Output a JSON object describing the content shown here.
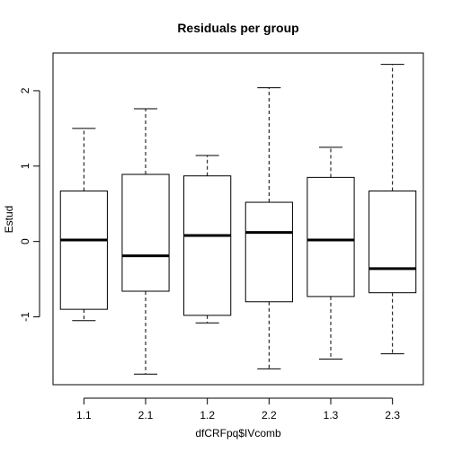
{
  "chart_data": {
    "type": "boxplot",
    "title": "Residuals per group",
    "xlabel": "dfCRFpq$IVcomb",
    "ylabel": "Estud",
    "categories": [
      "1.1",
      "2.1",
      "1.2",
      "2.2",
      "1.3",
      "2.3"
    ],
    "boxes": [
      {
        "category": "1.1",
        "whisker_low": -1.05,
        "q1": -0.9,
        "median": 0.02,
        "q3": 0.67,
        "whisker_high": 1.5
      },
      {
        "category": "2.1",
        "whisker_low": -1.76,
        "q1": -0.66,
        "median": -0.19,
        "q3": 0.89,
        "whisker_high": 1.76
      },
      {
        "category": "1.2",
        "whisker_low": -1.08,
        "q1": -0.98,
        "median": 0.08,
        "q3": 0.87,
        "whisker_high": 1.14
      },
      {
        "category": "2.2",
        "whisker_low": -1.69,
        "q1": -0.8,
        "median": 0.12,
        "q3": 0.52,
        "whisker_high": 2.04
      },
      {
        "category": "1.3",
        "whisker_low": -1.56,
        "q1": -0.73,
        "median": 0.02,
        "q3": 0.85,
        "whisker_high": 1.25
      },
      {
        "category": "2.3",
        "whisker_low": -1.49,
        "q1": -0.68,
        "median": -0.36,
        "q3": 0.67,
        "whisker_high": 2.35
      }
    ],
    "yticks": [
      -1,
      0,
      1,
      2
    ],
    "ylim": [
      -1.9,
      2.5
    ],
    "grid": false,
    "legend": "none",
    "colors": {
      "box_fill": "#ffffff",
      "line": "#000000",
      "background": "#ffffff"
    }
  }
}
